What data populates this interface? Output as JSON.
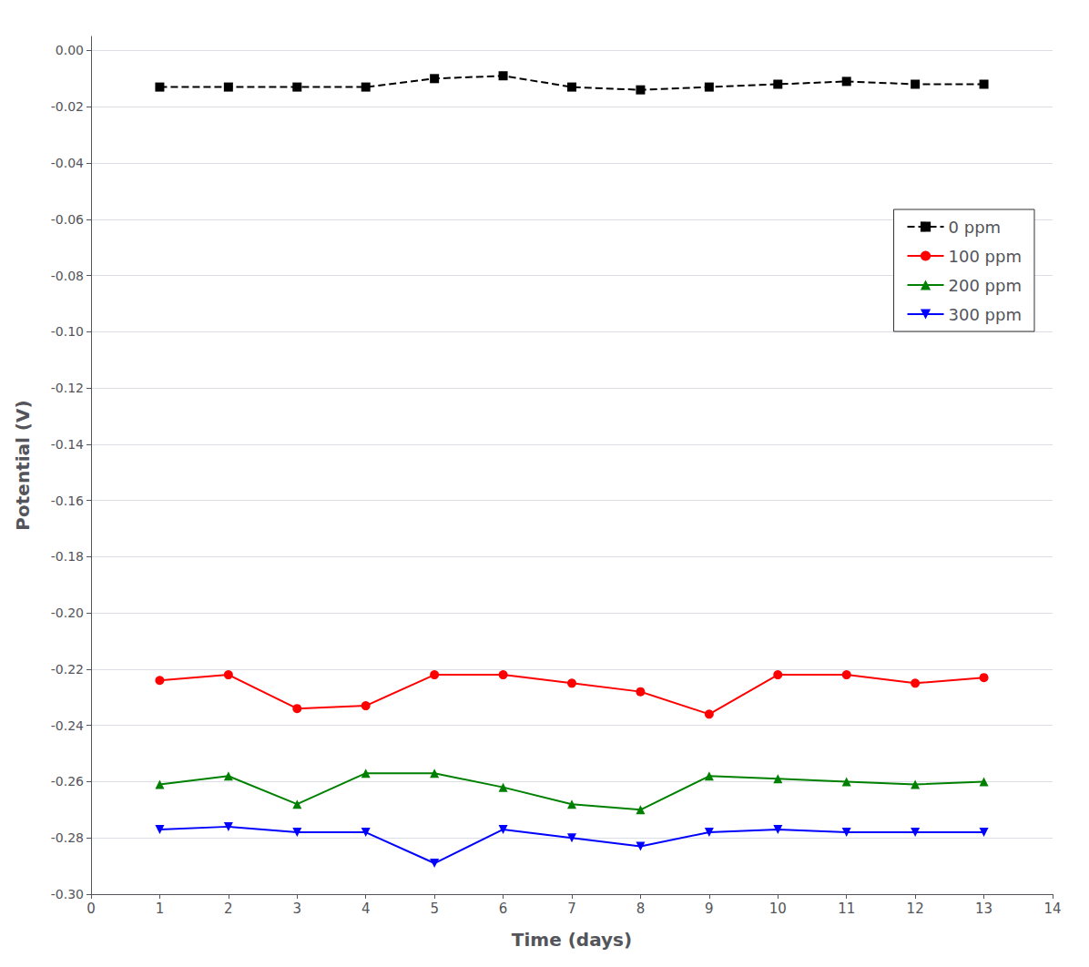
{
  "chart_data": {
    "type": "line",
    "xlabel": "Time (days)",
    "ylabel": "Potential (V)",
    "x": [
      1,
      2,
      3,
      4,
      5,
      6,
      7,
      8,
      9,
      10,
      11,
      12,
      13
    ],
    "series": [
      {
        "name": "0 ppm",
        "color": "black",
        "marker": "square",
        "line_style": "dashed",
        "values": [
          -0.013,
          -0.013,
          -0.013,
          -0.013,
          -0.01,
          -0.009,
          -0.013,
          -0.014,
          -0.013,
          -0.012,
          -0.011,
          -0.012,
          -0.012
        ]
      },
      {
        "name": "100 ppm",
        "color": "red",
        "marker": "circle",
        "line_style": "solid",
        "values": [
          -0.224,
          -0.222,
          -0.234,
          -0.233,
          -0.222,
          -0.222,
          -0.225,
          -0.228,
          -0.236,
          -0.222,
          -0.222,
          -0.225,
          -0.223
        ]
      },
      {
        "name": "200 ppm",
        "color": "green",
        "marker": "triangle",
        "line_style": "solid",
        "values": [
          -0.261,
          -0.258,
          -0.268,
          -0.257,
          -0.257,
          -0.262,
          -0.268,
          -0.27,
          -0.258,
          -0.259,
          -0.26,
          -0.261,
          -0.26
        ]
      },
      {
        "name": "300 ppm",
        "color": "blue",
        "marker": "triangle-down",
        "line_style": "solid",
        "values": [
          -0.277,
          -0.276,
          -0.278,
          -0.278,
          -0.289,
          -0.277,
          -0.28,
          -0.283,
          -0.278,
          -0.277,
          -0.278,
          -0.278,
          -0.278
        ]
      }
    ],
    "xlim": [
      0,
      14
    ],
    "xticks": [
      0,
      1,
      2,
      3,
      4,
      5,
      6,
      7,
      8,
      9,
      10,
      11,
      12,
      13,
      14
    ],
    "ylim": [
      -0.3,
      0.005
    ],
    "yticks": [
      {
        "value": 0.0,
        "label": "0.00"
      },
      {
        "value": -0.02,
        "label": "-0.02"
      },
      {
        "value": -0.04,
        "label": "-0.04"
      },
      {
        "value": -0.06,
        "label": "-0.06"
      },
      {
        "value": -0.08,
        "label": "-0.08"
      },
      {
        "value": -0.1,
        "label": "-0.10"
      },
      {
        "value": -0.12,
        "label": "-0.12"
      },
      {
        "value": -0.14,
        "label": "-0.14"
      },
      {
        "value": -0.16,
        "label": "-0.16"
      },
      {
        "value": -0.18,
        "label": "-0.18"
      },
      {
        "value": -0.2,
        "label": "-0.20"
      },
      {
        "value": -0.22,
        "label": "-0.22"
      },
      {
        "value": -0.24,
        "label": "-0.24"
      },
      {
        "value": -0.26,
        "label": "-0.26"
      },
      {
        "value": -0.28,
        "label": "-0.28"
      },
      {
        "value": -0.3,
        "label": "-0.30"
      }
    ],
    "grid": true,
    "legend": "upper right"
  }
}
